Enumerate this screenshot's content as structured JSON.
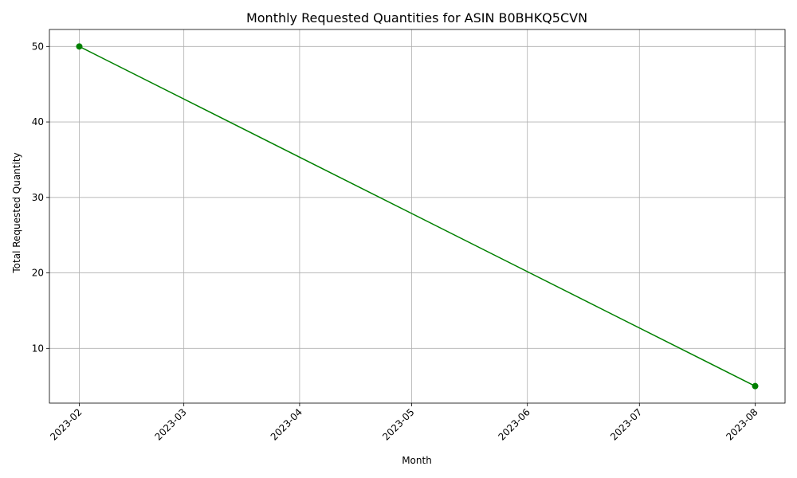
{
  "chart_data": {
    "type": "line",
    "title": "Monthly Requested Quantities for ASIN B0BHKQ5CVN",
    "xlabel": "Month",
    "ylabel": "Total Requested Quantity",
    "x_ticks": [
      "2023-02",
      "2023-03",
      "2023-04",
      "2023-05",
      "2023-06",
      "2023-07",
      "2023-08"
    ],
    "y_ticks": [
      10,
      20,
      30,
      40,
      50
    ],
    "ylim": [
      2.75,
      52.25
    ],
    "xlim": [
      "2023-01-24",
      "2023-08-09"
    ],
    "grid": true,
    "x_tick_rotation_deg": 45,
    "series": [
      {
        "color": "#008000",
        "marker": "circle",
        "points": [
          {
            "x": "2023-02",
            "y": 50
          },
          {
            "x": "2023-08",
            "y": 5
          }
        ]
      }
    ]
  }
}
